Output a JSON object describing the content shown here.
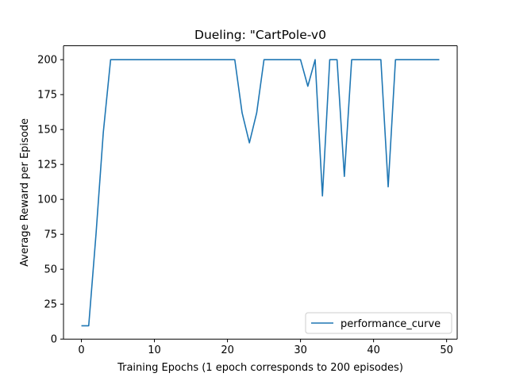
{
  "chart_data": {
    "type": "line",
    "title": "Dueling: \"CartPole-v0",
    "xlabel": "Training Epochs (1 epoch corresponds to 200 episodes)",
    "ylabel": "Average Reward per Episode",
    "xlim": [
      -2.45,
      51.45
    ],
    "ylim": [
      0,
      210
    ],
    "xticks": [
      0,
      10,
      20,
      30,
      40,
      50
    ],
    "yticks": [
      0,
      25,
      50,
      75,
      100,
      125,
      150,
      175,
      200
    ],
    "grid": false,
    "legend_position": "lower right",
    "colors": {
      "line": "#1f77b4",
      "axes": "#000000",
      "legend_border": "#cccccc"
    },
    "series": [
      {
        "name": "performance_curve",
        "x": [
          0,
          1,
          2,
          3,
          4,
          5,
          6,
          7,
          8,
          9,
          10,
          11,
          12,
          13,
          14,
          15,
          16,
          17,
          18,
          19,
          20,
          21,
          22,
          23,
          24,
          25,
          26,
          27,
          28,
          29,
          30,
          31,
          32,
          33,
          34,
          35,
          36,
          37,
          38,
          39,
          40,
          41,
          42,
          43,
          44,
          45,
          46,
          47,
          48,
          49
        ],
        "values": [
          9.5,
          9.5,
          75,
          148,
          200,
          200,
          200,
          200,
          200,
          200,
          200,
          200,
          200,
          200,
          200,
          200,
          200,
          200,
          200,
          200,
          200,
          200,
          162,
          140.5,
          162,
          200,
          200,
          200,
          200,
          200,
          200,
          181,
          200,
          102.5,
          200,
          200,
          116.5,
          200,
          200,
          200,
          200,
          200,
          109,
          200,
          200,
          200,
          200,
          200,
          200,
          200
        ]
      }
    ]
  }
}
